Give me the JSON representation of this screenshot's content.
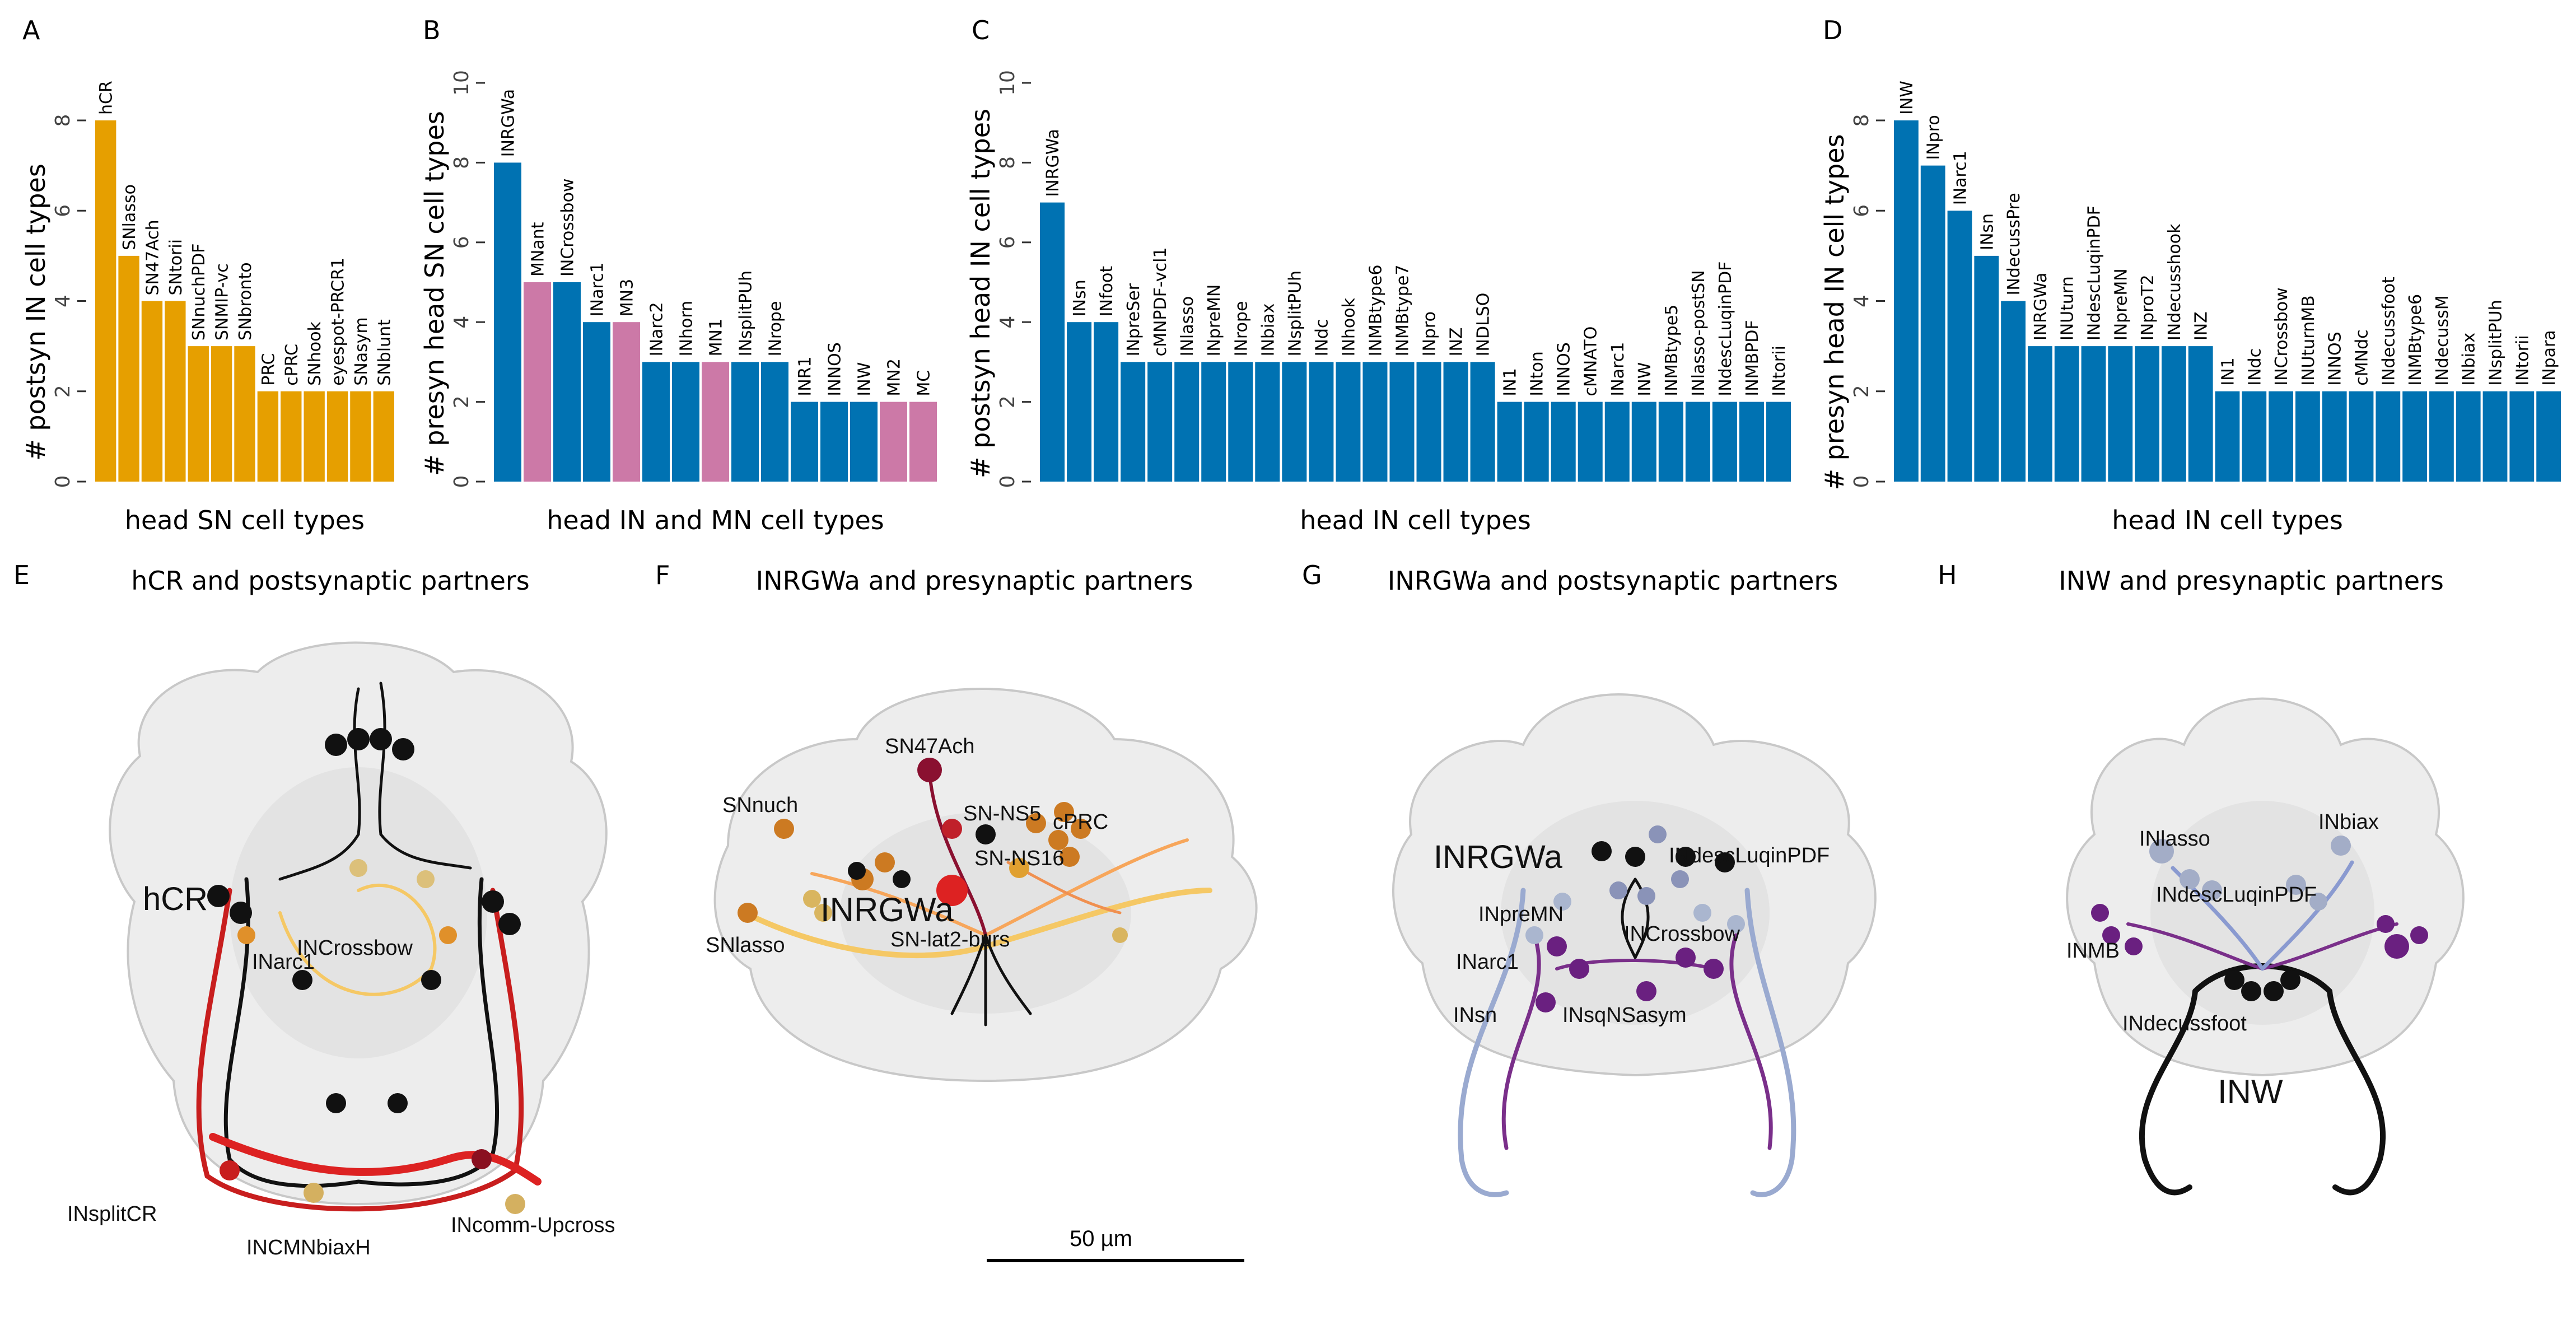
{
  "panels": {
    "A": {
      "letter": "A"
    },
    "B": {
      "letter": "B"
    },
    "C": {
      "letter": "C"
    },
    "D": {
      "letter": "D"
    },
    "E": {
      "letter": "E",
      "title": "hCR and postsynaptic partners",
      "labels": [
        "hCR",
        "INCrossbow",
        "INarc1",
        "INsplitCR",
        "INCMNbiaxH",
        "INcomm-Upcross"
      ]
    },
    "F": {
      "letter": "F",
      "title": "INRGWa and presynaptic partners",
      "labels": [
        "SN47Ach",
        "SNnuch",
        "SN-NS5",
        "cPRC",
        "SN-NS16",
        "INRGWa",
        "SNlasso",
        "SN-lat2-burs"
      ]
    },
    "G": {
      "letter": "G",
      "title": "INRGWa and postsynaptic partners",
      "labels": [
        "INRGWa",
        "INdescLuqinPDF",
        "INpreMN",
        "INCrossbow",
        "INarc1",
        "INsn",
        "INsqNSasym"
      ]
    },
    "H": {
      "letter": "H",
      "title": "INW and presynaptic partners",
      "labels": [
        "INlasso",
        "INbiax",
        "INdescLuqinPDF",
        "INMB",
        "INdecussfoot",
        "INW"
      ]
    }
  },
  "scalebar": {
    "label": "50 µm"
  },
  "colors": {
    "orange": "#E69F00",
    "blue": "#0072B2",
    "pink": "#CC79A7"
  },
  "chart_data": [
    {
      "panel": "A",
      "type": "bar",
      "xlabel": "head SN cell types",
      "ylabel": "# postsyn IN cell types",
      "ylim": [
        0,
        8
      ],
      "yticks": [
        0,
        2,
        4,
        6,
        8
      ],
      "categories": [
        "hCR",
        "SNlasso",
        "SN47Ach",
        "SNtorii",
        "SNnuchPDF",
        "SNMIP-vc",
        "SNbronto",
        "PRC",
        "cPRC",
        "SNhook",
        "eyespot-PRCR1",
        "SNasym",
        "SNblunt"
      ],
      "values": [
        8,
        5,
        4,
        4,
        3,
        3,
        3,
        2,
        2,
        2,
        2,
        2,
        2
      ],
      "bar_colors": [
        "orange",
        "orange",
        "orange",
        "orange",
        "orange",
        "orange",
        "orange",
        "orange",
        "orange",
        "orange",
        "orange",
        "orange",
        "orange"
      ]
    },
    {
      "panel": "B",
      "type": "bar",
      "xlabel": "head IN and MN cell types",
      "ylabel": "# presyn head SN cell types",
      "ylim": [
        0,
        10
      ],
      "yticks": [
        0,
        2,
        4,
        6,
        8,
        10
      ],
      "categories": [
        "INRGWa",
        "MNant",
        "INCrossbow",
        "INarc1",
        "MN3",
        "INarc2",
        "INhorn",
        "MN1",
        "INsplitPUh",
        "INrope",
        "INR1",
        "INNOS",
        "INW",
        "MN2",
        "MC"
      ],
      "values": [
        8,
        5,
        5,
        4,
        4,
        3,
        3,
        3,
        3,
        3,
        2,
        2,
        2,
        2,
        2
      ],
      "bar_colors": [
        "blue",
        "pink",
        "blue",
        "blue",
        "pink",
        "blue",
        "blue",
        "pink",
        "blue",
        "blue",
        "blue",
        "blue",
        "blue",
        "pink",
        "pink"
      ]
    },
    {
      "panel": "C",
      "type": "bar",
      "xlabel": "head IN cell types",
      "ylabel": "# postsyn head IN cell types",
      "ylim": [
        0,
        10
      ],
      "yticks": [
        0,
        2,
        4,
        6,
        8,
        10
      ],
      "categories": [
        "INRGWa",
        "INsn",
        "INfoot",
        "INpreSer",
        "cMNPDF-vcl1",
        "INlasso",
        "INpreMN",
        "INrope",
        "INbiax",
        "INsplitPUh",
        "INdc",
        "INhook",
        "INMBtype6",
        "INMBtype7",
        "INpro",
        "INZ",
        "INDLSO",
        "IN1",
        "INton",
        "INNOS",
        "cMNATO",
        "INarc1",
        "INW",
        "INMBtype5",
        "INlasso-postSN",
        "INdescLuqinPDF",
        "INMBPDF",
        "INtorii"
      ],
      "values": [
        7,
        4,
        4,
        3,
        3,
        3,
        3,
        3,
        3,
        3,
        3,
        3,
        3,
        3,
        3,
        3,
        3,
        2,
        2,
        2,
        2,
        2,
        2,
        2,
        2,
        2,
        2,
        2
      ],
      "bar_colors": "blue"
    },
    {
      "panel": "D",
      "type": "bar",
      "xlabel": "head IN cell types",
      "ylabel": "# presyn head IN cell types",
      "ylim": [
        0,
        8
      ],
      "yticks": [
        0,
        2,
        4,
        6,
        8
      ],
      "categories": [
        "INW",
        "INpro",
        "INarc1",
        "INsn",
        "INdecussPre",
        "INRGWa",
        "INUturn",
        "INdescLuqinPDF",
        "INpreMN",
        "INproT2",
        "INdecusshook",
        "INZ",
        "IN1",
        "INdc",
        "INCrossbow",
        "INUturnMB",
        "INNOS",
        "cMNdc",
        "INdecussfoot",
        "INMBtype6",
        "INdecussM",
        "INbiax",
        "INsplitPUh",
        "INtorii",
        "INpara"
      ],
      "values": [
        8,
        7,
        6,
        5,
        4,
        3,
        3,
        3,
        3,
        3,
        3,
        3,
        2,
        2,
        2,
        2,
        2,
        2,
        2,
        2,
        2,
        2,
        2,
        2,
        2
      ],
      "bar_colors": "blue"
    }
  ]
}
